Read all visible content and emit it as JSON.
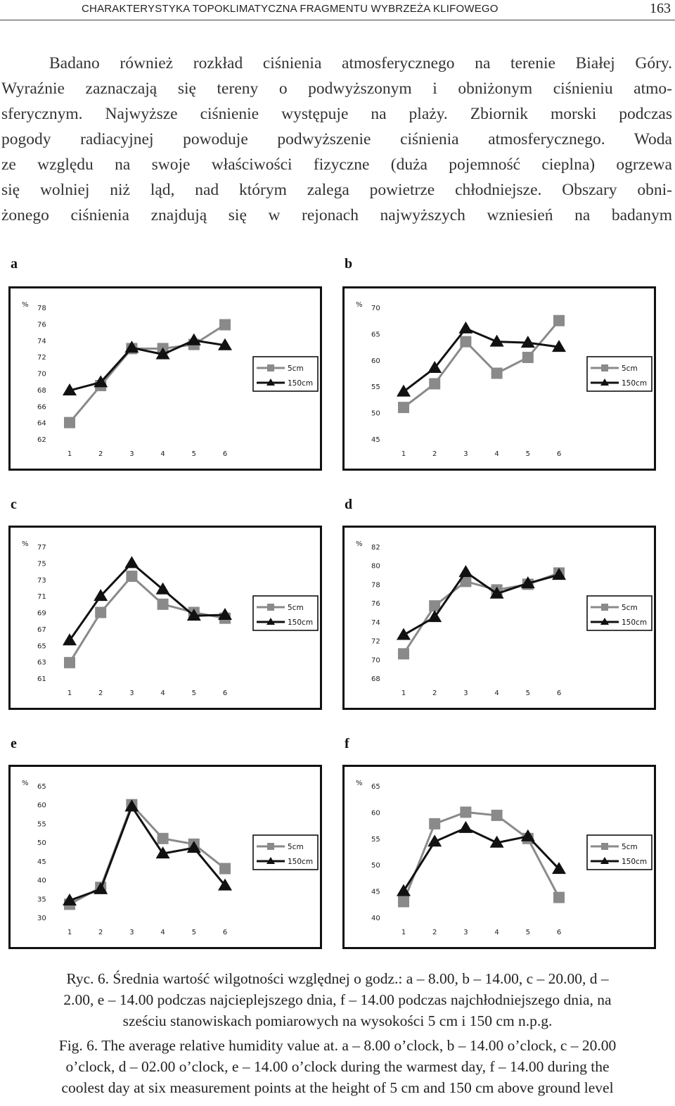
{
  "header": {
    "title": "CHARAKTERYSTYKA TOPOKLIMATYCZNA FRAGMENTU WYBRZEŻA KLIFOWEGO",
    "page_number": "163"
  },
  "body_lines": [
    "Badano również rozkład ciśnienia atmosferycznego na terenie Białej Góry.",
    "Wyraźnie zaznaczają się tereny o podwyższonym i obniżonym ciśnieniu atmo-",
    "sferycznym. Najwyższe ciśnienie występuje na plaży. Zbiornik morski podczas",
    "pogody radiacyjnej powoduje podwyższenie ciśnienia atmosferycznego. Woda",
    "ze względu na swoje właściwości fizyczne (duża pojemność cieplna) ogrzewa",
    "się wolniej niż ląd, nad którym zalega powietrze chłodniejsze. Obszary obni-",
    "żonego ciśnienia znajdują się w rejonach najwyższych wzniesień na badanym"
  ],
  "caption": {
    "pl": [
      "Ryc. 6. Średnia wartość wilgotności względnej o godz.: a – 8.00, b – 14.00, c – 20.00, d –",
      "2.00, e – 14.00 podczas najcieplejszego dnia, f – 14.00 podczas najchłodniejszego dnia, na",
      "sześciu stanowiskach pomiarowych na wysokości 5 cm i 150 cm n.p.g."
    ],
    "en": [
      "Fig. 6. The average relative humidity value at. a – 8.00 o’clock, b – 14.00 o’clock, c – 20.00",
      "o’clock, d – 02.00 o’clock, e – 14.00 o’clock during the warmest day, f – 14.00 during the",
      "coolest day at six measurement points at the height of 5 cm and 150 cm above ground level"
    ]
  },
  "colors": {
    "series_5cm": "#8a8a8a",
    "series_150cm": "#111111"
  },
  "chart_data": [
    {
      "panel": "a",
      "type": "line",
      "ylabel": "%",
      "x": [
        1,
        2,
        3,
        4,
        5,
        6
      ],
      "yticks": [
        62,
        64,
        66,
        68,
        70,
        72,
        74,
        76,
        78
      ],
      "ylim": [
        62,
        78
      ],
      "legend": "right",
      "series": [
        {
          "name": "5cm",
          "marker": "square",
          "values": [
            64.0,
            68.5,
            73.0,
            73.0,
            73.5,
            75.9
          ]
        },
        {
          "name": "150cm",
          "marker": "triangle",
          "values": [
            67.9,
            68.9,
            73.1,
            72.3,
            74.0,
            73.4
          ]
        }
      ]
    },
    {
      "panel": "b",
      "type": "line",
      "ylabel": "%",
      "x": [
        1,
        2,
        3,
        4,
        5,
        6
      ],
      "yticks": [
        45,
        50,
        55,
        60,
        65,
        70
      ],
      "ylim": [
        45,
        70
      ],
      "legend": "right",
      "series": [
        {
          "name": "5cm",
          "marker": "square",
          "values": [
            51.0,
            55.5,
            63.5,
            57.5,
            60.5,
            67.5
          ]
        },
        {
          "name": "150cm",
          "marker": "triangle",
          "values": [
            54.0,
            58.5,
            66.0,
            63.5,
            63.3,
            62.5
          ]
        }
      ]
    },
    {
      "panel": "c",
      "type": "line",
      "ylabel": "%",
      "x": [
        1,
        2,
        3,
        4,
        5,
        6
      ],
      "yticks": [
        61,
        63,
        65,
        67,
        69,
        71,
        73,
        75,
        77
      ],
      "ylim": [
        61,
        77
      ],
      "legend": "right",
      "series": [
        {
          "name": "5cm",
          "marker": "square",
          "values": [
            62.9,
            69.0,
            73.4,
            70.0,
            69.0,
            68.3
          ]
        },
        {
          "name": "150cm",
          "marker": "triangle",
          "values": [
            65.6,
            71.0,
            75.0,
            71.8,
            68.6,
            68.7
          ]
        }
      ]
    },
    {
      "panel": "d",
      "type": "line",
      "ylabel": "%",
      "x": [
        1,
        2,
        3,
        4,
        5,
        6
      ],
      "yticks": [
        68,
        70,
        72,
        74,
        76,
        78,
        80,
        82
      ],
      "ylim": [
        68,
        82
      ],
      "legend": "right",
      "series": [
        {
          "name": "5cm",
          "marker": "square",
          "values": [
            70.6,
            75.7,
            78.3,
            77.4,
            78.0,
            79.2
          ]
        },
        {
          "name": "150cm",
          "marker": "triangle",
          "values": [
            72.6,
            74.5,
            79.3,
            77.0,
            78.1,
            79.0
          ]
        }
      ]
    },
    {
      "panel": "e",
      "type": "line",
      "ylabel": "%",
      "x": [
        1,
        2,
        3,
        4,
        5,
        6
      ],
      "yticks": [
        30,
        35,
        40,
        45,
        50,
        55,
        60,
        65
      ],
      "ylim": [
        30,
        65
      ],
      "legend": "right",
      "series": [
        {
          "name": "5cm",
          "marker": "square",
          "values": [
            33.5,
            38.0,
            60.0,
            51.0,
            49.5,
            43.0
          ]
        },
        {
          "name": "150cm",
          "marker": "triangle",
          "values": [
            34.5,
            37.5,
            59.5,
            47.0,
            48.5,
            38.5
          ]
        }
      ]
    },
    {
      "panel": "f",
      "type": "line",
      "ylabel": "%",
      "x": [
        1,
        2,
        3,
        4,
        5,
        6
      ],
      "yticks": [
        40,
        45,
        50,
        55,
        60,
        65
      ],
      "ylim": [
        40,
        65
      ],
      "legend": "right",
      "series": [
        {
          "name": "5cm",
          "marker": "square",
          "values": [
            43.0,
            57.8,
            60.0,
            59.4,
            55.0,
            43.8
          ]
        },
        {
          "name": "150cm",
          "marker": "triangle",
          "values": [
            45.0,
            54.4,
            57.0,
            54.2,
            55.4,
            49.2
          ]
        }
      ]
    }
  ]
}
